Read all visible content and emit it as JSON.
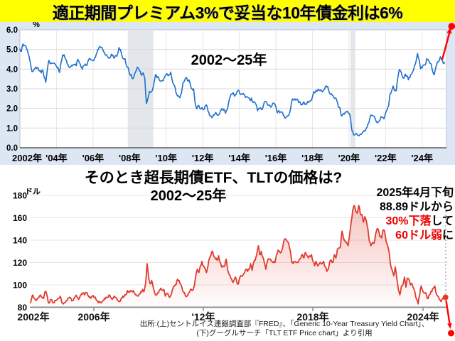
{
  "header": {
    "title": "適正期間プレミアム3%で妥当な10年債金利は6%"
  },
  "bottom_section": {
    "title": "そのとき超長期債ETF、TLTの価格は?",
    "subtitle": "2002〜25年",
    "annotation": {
      "line1": "2025年4月下旬",
      "line2": "88.89ドルから",
      "line3_red": "30%下落",
      "line3_black": "して",
      "line4_red": "60ドル弱",
      "line4_black": "に"
    },
    "source_line1": "出所:(上)セントルイス連銀調査部『FRED』、「Generic 10-Year Treasury Yield Chart」、",
    "source_line2": "(下)グーグルサーチ「TLT ETF Price chart」より引用"
  },
  "chart_data": [
    {
      "type": "line",
      "title": "2002〜25年",
      "ylabel": "%",
      "ylim": [
        0,
        6
      ],
      "y_tick_labels": [
        "0.0",
        "1.0",
        "2.0",
        "3.0",
        "4.0",
        "5.0",
        "6.0"
      ],
      "x_tick_years": [
        2002,
        2004,
        2006,
        2008,
        2010,
        2012,
        2014,
        2016,
        2018,
        2020,
        2022,
        2024
      ],
      "x_tick_labels": [
        "2002年",
        "'04年",
        "'06年",
        "'08年",
        "'10年",
        "'12年",
        "'14年",
        "'16年",
        "'18年",
        "'20年",
        "'22年",
        "'24年"
      ],
      "line_color": "#1E6FCB",
      "recession_bands": [
        [
          2007.9,
          2009.3
        ],
        [
          2020.08,
          2020.35
        ]
      ],
      "arrow": {
        "from_value": 4.35,
        "to_value": 6.2,
        "color": "#FF0000"
      },
      "series": [
        {
          "name": "Generic 10-Year Treasury Yield (%)",
          "start_year": 2002.0,
          "interval": "monthly",
          "values": [
            5.04,
            4.91,
            5.28,
            5.21,
            5.16,
            4.93,
            4.65,
            4.26,
            3.87,
            3.94,
            4.05,
            4.03,
            4.05,
            3.9,
            3.81,
            3.96,
            3.57,
            3.33,
            3.98,
            4.45,
            4.27,
            4.29,
            4.3,
            4.27,
            4.15,
            4.08,
            3.83,
            4.35,
            4.72,
            4.73,
            4.5,
            4.28,
            4.13,
            4.1,
            4.19,
            4.23,
            4.22,
            4.17,
            4.5,
            4.34,
            4.14,
            4.0,
            4.18,
            4.26,
            4.2,
            4.46,
            4.54,
            4.47,
            4.42,
            4.57,
            4.72,
            4.99,
            5.11,
            5.11,
            5.09,
            4.88,
            4.72,
            4.73,
            4.6,
            4.56,
            4.76,
            4.72,
            4.56,
            4.69,
            4.75,
            5.1,
            5.0,
            4.67,
            4.52,
            4.53,
            4.15,
            4.1,
            3.74,
            3.74,
            3.51,
            3.68,
            3.88,
            4.1,
            4.01,
            3.89,
            3.69,
            3.81,
            3.53,
            2.25,
            2.52,
            2.87,
            2.82,
            2.93,
            3.29,
            3.72,
            3.56,
            3.59,
            3.4,
            3.39,
            3.4,
            3.59,
            3.73,
            3.69,
            3.73,
            3.85,
            3.42,
            3.2,
            3.01,
            2.7,
            2.65,
            2.54,
            2.76,
            3.29,
            3.39,
            3.58,
            3.41,
            3.46,
            3.17,
            3.0,
            3.0,
            2.3,
            1.98,
            2.15,
            2.01,
            1.98,
            1.97,
            1.97,
            2.17,
            2.05,
            1.8,
            1.62,
            1.53,
            1.68,
            1.72,
            1.75,
            1.65,
            1.72,
            1.91,
            1.98,
            1.96,
            1.76,
            1.93,
            2.3,
            2.58,
            2.74,
            2.81,
            2.62,
            2.72,
            2.9,
            2.86,
            2.71,
            2.72,
            2.71,
            2.56,
            2.6,
            2.54,
            2.42,
            2.53,
            2.3,
            2.33,
            2.21,
            1.88,
            1.98,
            2.04,
            1.94,
            2.2,
            2.36,
            2.32,
            2.17,
            2.17,
            2.07,
            2.26,
            2.24,
            2.09,
            1.78,
            1.89,
            1.81,
            1.81,
            1.64,
            1.5,
            1.56,
            1.63,
            1.76,
            2.14,
            2.49,
            2.43,
            2.42,
            2.48,
            2.3,
            2.3,
            2.19,
            2.32,
            2.21,
            2.2,
            2.36,
            2.35,
            2.4,
            2.58,
            2.86,
            2.84,
            2.87,
            2.98,
            2.91,
            2.89,
            2.89,
            3.0,
            3.15,
            3.12,
            2.83,
            2.71,
            2.68,
            2.57,
            2.53,
            2.4,
            2.07,
            2.06,
            1.63,
            1.7,
            1.71,
            1.81,
            1.86,
            1.76,
            1.5,
            0.87,
            0.66,
            0.67,
            0.73,
            0.62,
            0.65,
            0.68,
            0.79,
            0.87,
            0.93,
            1.08,
            1.26,
            1.61,
            1.64,
            1.62,
            1.52,
            1.32,
            1.28,
            1.37,
            1.58,
            1.56,
            1.47,
            1.76,
            1.93,
            2.13,
            2.75,
            2.9,
            3.14,
            2.9,
            2.9,
            3.52,
            3.98,
            3.89,
            3.62,
            3.53,
            3.75,
            3.66,
            3.46,
            3.57,
            3.75,
            3.9,
            4.17,
            4.38,
            4.8,
            4.5,
            4.02,
            4.06,
            4.21,
            4.21,
            4.54,
            4.48,
            4.31,
            4.25,
            3.87,
            3.72,
            4.1,
            4.36,
            4.39,
            4.63,
            4.45,
            4.28,
            4.35
          ]
        }
      ]
    },
    {
      "type": "area",
      "title": "2002〜25年",
      "ylabel": "ドル",
      "ylim": [
        80,
        180
      ],
      "y_tick_labels": [
        "80",
        "100",
        "120",
        "140",
        "160",
        "180"
      ],
      "x_tick_labels": [
        "2002年",
        "2006年",
        "'12年",
        "2018年",
        "2024年"
      ],
      "line_color": "#E03B2E",
      "last_value": 88.89,
      "annotation_text": "2025年4月下旬 88.89ドルから30%下落して60ドル弱に",
      "arrow": {
        "from_value": 88.89,
        "to_value": 60,
        "color": "#FF0000"
      },
      "series": [
        {
          "name": "TLT ETF Price (USD)",
          "start_year": 2002.5,
          "interval": "monthly",
          "values": [
            84,
            87,
            91,
            88,
            86,
            88,
            89,
            91,
            89,
            88,
            94,
            92,
            85,
            84,
            87,
            84,
            84,
            86,
            87,
            88,
            90,
            84,
            83,
            84,
            86,
            88,
            89,
            88,
            86,
            88,
            90,
            89,
            87,
            90,
            92,
            93,
            91,
            93,
            91,
            89,
            88,
            90,
            89,
            89,
            86,
            84,
            85,
            84,
            86,
            88,
            89,
            89,
            91,
            89,
            87,
            89,
            89,
            88,
            86,
            85,
            88,
            90,
            90,
            91,
            95,
            94,
            95,
            94,
            95,
            92,
            91,
            90,
            92,
            94,
            96,
            94,
            101,
            119,
            107,
            101,
            104,
            98,
            93,
            91,
            93,
            95,
            97,
            95,
            96,
            90,
            92,
            91,
            89,
            92,
            97,
            99,
            100,
            105,
            104,
            101,
            97,
            93,
            91,
            90,
            92,
            94,
            96,
            95,
            99,
            108,
            114,
            111,
            117,
            121,
            117,
            115,
            111,
            117,
            124,
            127,
            130,
            125,
            123,
            122,
            126,
            120,
            116,
            117,
            117,
            123,
            113,
            109,
            106,
            103,
            104,
            107,
            102,
            101,
            107,
            108,
            109,
            111,
            114,
            112,
            114,
            119,
            113,
            120,
            122,
            127,
            135,
            127,
            130,
            125,
            120,
            114,
            121,
            123,
            123,
            121,
            120,
            120,
            127,
            131,
            130,
            129,
            133,
            140,
            141,
            139,
            137,
            131,
            120,
            119,
            121,
            120,
            120,
            123,
            124,
            127,
            124,
            129,
            126,
            124,
            126,
            127,
            121,
            117,
            121,
            117,
            119,
            120,
            119,
            121,
            116,
            112,
            114,
            121,
            122,
            120,
            127,
            124,
            132,
            133,
            134,
            148,
            142,
            139,
            137,
            135,
            145,
            156,
            166,
            171,
            166,
            164,
            171,
            164,
            163,
            156,
            161,
            157,
            150,
            139,
            135,
            138,
            137,
            145,
            150,
            149,
            143,
            142,
            149,
            148,
            139,
            135,
            129,
            117,
            113,
            108,
            116,
            106,
            96,
            91,
            99,
            100,
            107,
            98,
            106,
            105,
            100,
            101,
            97,
            93,
            87,
            83,
            91,
            99,
            95,
            93,
            93,
            88,
            90,
            92,
            94,
            97,
            99,
            92,
            90,
            87,
            85,
            88,
            89,
            88.89
          ]
        }
      ]
    }
  ]
}
